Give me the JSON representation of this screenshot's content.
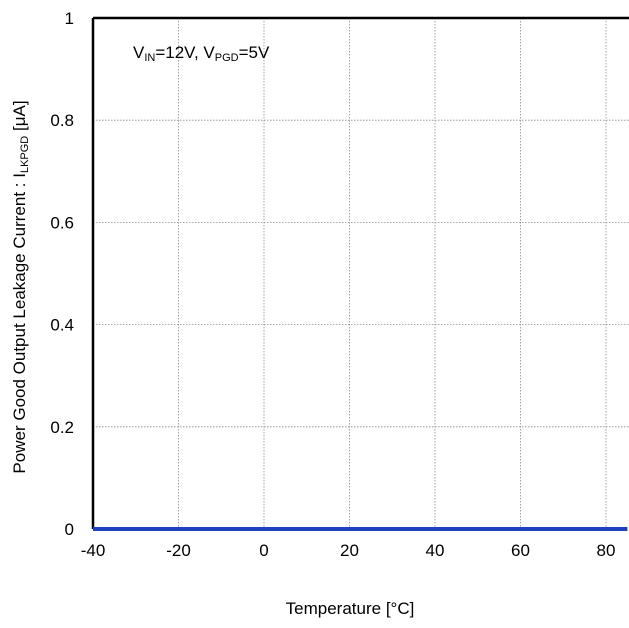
{
  "chart_data": {
    "type": "line",
    "x": [
      -40,
      -20,
      0,
      20,
      40,
      60,
      80,
      85
    ],
    "series": [
      {
        "values": [
          0,
          0,
          0,
          0,
          0,
          0,
          0,
          0
        ],
        "color": "#1f3fbf"
      }
    ],
    "xlim": [
      -40,
      85
    ],
    "ylim": [
      0,
      1
    ],
    "xticks": [
      "-40",
      "-20",
      "0",
      "20",
      "40",
      "60",
      "80"
    ],
    "yticks": [
      "0",
      "0.2",
      "0.4",
      "0.6",
      "0.8",
      "1"
    ],
    "xlabel": "Temperature [°C]",
    "ylabel": {
      "prefix": "Power Good Output Leakage Current : I",
      "sub": "LKPGD",
      "suffix": " [μA]"
    },
    "annotation": {
      "v1": "V",
      "v1_sub": "IN",
      "v1_val": "=12V, V",
      "v2_sub": "PGD",
      "v2_val": "=5V"
    },
    "grid": true
  }
}
